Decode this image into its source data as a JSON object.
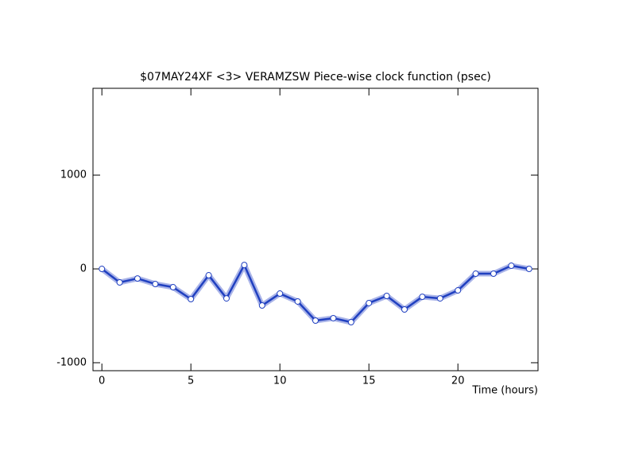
{
  "chart_data": {
    "type": "line",
    "title": "$07MAY24XF <3>  VERAMZSW  Piece-wise clock function (psec)",
    "x_label": "Time (hours)",
    "x": [
      0,
      1,
      2,
      3,
      4,
      5,
      6,
      7,
      8,
      9,
      10,
      11,
      12,
      13,
      14,
      15,
      16,
      17,
      18,
      19,
      20,
      21,
      22,
      23,
      24
    ],
    "series": [
      {
        "name": "VERAMZSW",
        "color": "#2040c0",
        "values": [
          0,
          -144,
          -102,
          -161,
          -195,
          -322,
          -68,
          -314,
          42,
          -390,
          -263,
          -347,
          -551,
          -525,
          -568,
          -364,
          -288,
          -432,
          -297,
          -314,
          -229,
          -51,
          -51,
          34,
          0
        ]
      }
    ],
    "xlim": [
      -0.5,
      24.5
    ],
    "xticks": [
      0,
      5,
      10,
      15,
      20
    ],
    "ylim": [
      -1085,
      1925
    ],
    "yticks": [
      -1000,
      0,
      1000
    ],
    "grid": false
  }
}
